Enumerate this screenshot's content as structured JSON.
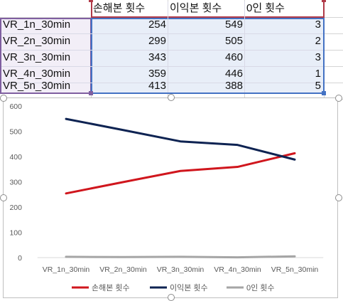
{
  "sheet": {
    "headers": [
      "손해본 횟수",
      "이익본 횟수",
      "0인 횟수"
    ],
    "rows": [
      {
        "label": "VR_1n_30min",
        "values": [
          254,
          549,
          3
        ]
      },
      {
        "label": "VR_2n_30min",
        "values": [
          299,
          505,
          2
        ]
      },
      {
        "label": "VR_3n_30min",
        "values": [
          343,
          460,
          3
        ]
      },
      {
        "label": "VR_4n_30min",
        "values": [
          359,
          446,
          1
        ]
      },
      {
        "label": "VR_5n_30min",
        "values": [
          413,
          388,
          5
        ]
      }
    ],
    "colors": {
      "header_range_border": "#b03a48",
      "label_range_border": "#7f5fa0",
      "value_range_border": "#4472c4",
      "value_range_fill": "#e8eef8",
      "label_range_fill": "#f2eef7"
    }
  },
  "chart_data": {
    "type": "line",
    "categories": [
      "VR_1n_30min",
      "VR_2n_30min",
      "VR_3n_30min",
      "VR_4n_30min",
      "VR_5n_30min"
    ],
    "series": [
      {
        "name": "손해본 횟수",
        "values": [
          254,
          299,
          343,
          359,
          413
        ],
        "color": "#d0161d"
      },
      {
        "name": "이익본 횟수",
        "values": [
          549,
          505,
          460,
          446,
          388
        ],
        "color": "#0e2352"
      },
      {
        "name": "0인 횟수",
        "values": [
          3,
          2,
          3,
          1,
          5
        ],
        "color": "#a5a5a5"
      }
    ],
    "yticks": [
      0,
      100,
      200,
      300,
      400,
      500,
      600
    ],
    "ylim": [
      0,
      600
    ],
    "grid": false,
    "legend_position": "bottom"
  }
}
